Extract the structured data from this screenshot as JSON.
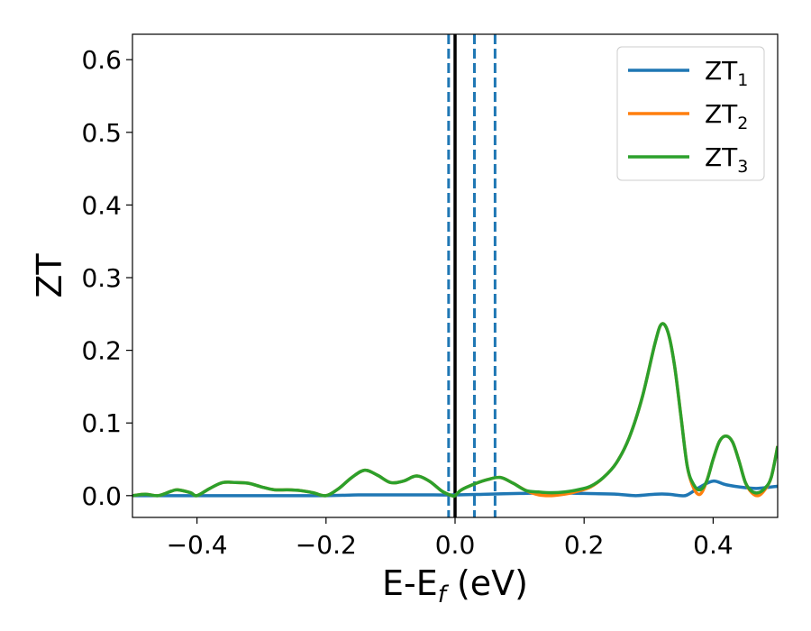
{
  "chart_data": {
    "type": "line",
    "xlabel": {
      "main": "E-E",
      "sub": "f",
      "unit": " (eV)"
    },
    "ylabel": "ZT",
    "xlim": [
      -0.5,
      0.5
    ],
    "ylim": [
      -0.03,
      0.635
    ],
    "x_ticks": [
      -0.4,
      -0.2,
      0.0,
      0.2,
      0.4
    ],
    "x_tick_labels": [
      "−0.4",
      "−0.2",
      "0.0",
      "0.2",
      "0.4"
    ],
    "y_ticks": [
      0.0,
      0.1,
      0.2,
      0.3,
      0.4,
      0.5,
      0.6
    ],
    "y_tick_labels": [
      "0.0",
      "0.1",
      "0.2",
      "0.3",
      "0.4",
      "0.5",
      "0.6"
    ],
    "grid": false,
    "legend_position": "top-right",
    "vlines": [
      {
        "x": 0.0,
        "style": "solid",
        "color": "#000000"
      },
      {
        "x": -0.01,
        "style": "dashed",
        "color": "#1f77b4"
      },
      {
        "x": 0.03,
        "style": "dashed",
        "color": "#1f77b4"
      },
      {
        "x": 0.062,
        "style": "dashed",
        "color": "#1f77b4"
      }
    ],
    "series": [
      {
        "name": "ZT",
        "subscript": "1",
        "color": "#1f77b4",
        "x": [
          -0.5,
          -0.45,
          -0.4,
          -0.3,
          -0.2,
          -0.15,
          -0.1,
          -0.05,
          0.0,
          0.05,
          0.1,
          0.15,
          0.2,
          0.25,
          0.28,
          0.31,
          0.33,
          0.35,
          0.36,
          0.38,
          0.4,
          0.42,
          0.45,
          0.47,
          0.5
        ],
        "y": [
          0.0,
          0.0,
          0.0,
          0.0,
          0.0,
          0.001,
          0.001,
          0.001,
          0.001,
          0.002,
          0.003,
          0.004,
          0.003,
          0.002,
          0.0,
          0.002,
          0.002,
          0.0,
          0.001,
          0.012,
          0.02,
          0.015,
          0.011,
          0.01,
          0.013
        ]
      },
      {
        "name": "ZT",
        "subscript": "2",
        "color": "#ff7f0e",
        "x": [
          -0.5,
          -0.48,
          -0.46,
          -0.44,
          -0.43,
          -0.41,
          -0.4,
          -0.38,
          -0.36,
          -0.34,
          -0.32,
          -0.3,
          -0.28,
          -0.26,
          -0.24,
          -0.22,
          -0.2,
          -0.18,
          -0.16,
          -0.14,
          -0.12,
          -0.1,
          -0.08,
          -0.06,
          -0.04,
          -0.02,
          -0.005,
          0.0,
          0.01,
          0.03,
          0.05,
          0.07,
          0.09,
          0.11,
          0.13,
          0.15,
          0.17,
          0.19,
          0.21,
          0.23,
          0.25,
          0.27,
          0.29,
          0.31,
          0.32,
          0.33,
          0.34,
          0.35,
          0.36,
          0.37,
          0.38,
          0.39,
          0.4,
          0.41,
          0.42,
          0.43,
          0.44,
          0.45,
          0.46,
          0.47,
          0.48,
          0.49,
          0.5
        ],
        "y": [
          0.0,
          0.002,
          0.0,
          0.006,
          0.008,
          0.004,
          0.0,
          0.01,
          0.018,
          0.018,
          0.017,
          0.012,
          0.008,
          0.008,
          0.007,
          0.004,
          0.0,
          0.01,
          0.025,
          0.035,
          0.028,
          0.018,
          0.02,
          0.027,
          0.02,
          0.006,
          0.0,
          0.0,
          0.008,
          0.016,
          0.022,
          0.025,
          0.017,
          0.007,
          0.001,
          0.0,
          0.002,
          0.006,
          0.012,
          0.025,
          0.045,
          0.08,
          0.135,
          0.21,
          0.236,
          0.225,
          0.18,
          0.11,
          0.04,
          0.01,
          0.002,
          0.02,
          0.05,
          0.075,
          0.082,
          0.074,
          0.048,
          0.018,
          0.004,
          0.0,
          0.008,
          0.025,
          0.068
        ]
      },
      {
        "name": "ZT",
        "subscript": "3",
        "color": "#2ca02c",
        "x": [
          -0.5,
          -0.48,
          -0.46,
          -0.44,
          -0.43,
          -0.41,
          -0.4,
          -0.38,
          -0.36,
          -0.34,
          -0.32,
          -0.3,
          -0.28,
          -0.26,
          -0.24,
          -0.22,
          -0.2,
          -0.18,
          -0.16,
          -0.14,
          -0.12,
          -0.1,
          -0.08,
          -0.06,
          -0.04,
          -0.02,
          -0.005,
          0.0,
          0.01,
          0.03,
          0.05,
          0.07,
          0.09,
          0.11,
          0.13,
          0.15,
          0.17,
          0.19,
          0.21,
          0.23,
          0.25,
          0.27,
          0.29,
          0.31,
          0.32,
          0.33,
          0.34,
          0.35,
          0.36,
          0.37,
          0.38,
          0.39,
          0.4,
          0.41,
          0.42,
          0.43,
          0.44,
          0.45,
          0.46,
          0.47,
          0.48,
          0.49,
          0.5
        ],
        "y": [
          0.0,
          0.002,
          0.0,
          0.006,
          0.008,
          0.004,
          0.0,
          0.01,
          0.018,
          0.018,
          0.017,
          0.012,
          0.008,
          0.008,
          0.007,
          0.004,
          0.0,
          0.01,
          0.025,
          0.035,
          0.028,
          0.018,
          0.02,
          0.027,
          0.02,
          0.006,
          0.0,
          0.0,
          0.008,
          0.016,
          0.022,
          0.025,
          0.017,
          0.007,
          0.005,
          0.004,
          0.005,
          0.008,
          0.013,
          0.025,
          0.045,
          0.08,
          0.135,
          0.21,
          0.236,
          0.225,
          0.18,
          0.11,
          0.04,
          0.015,
          0.008,
          0.02,
          0.05,
          0.075,
          0.082,
          0.074,
          0.048,
          0.018,
          0.006,
          0.004,
          0.01,
          0.025,
          0.068
        ]
      }
    ]
  }
}
